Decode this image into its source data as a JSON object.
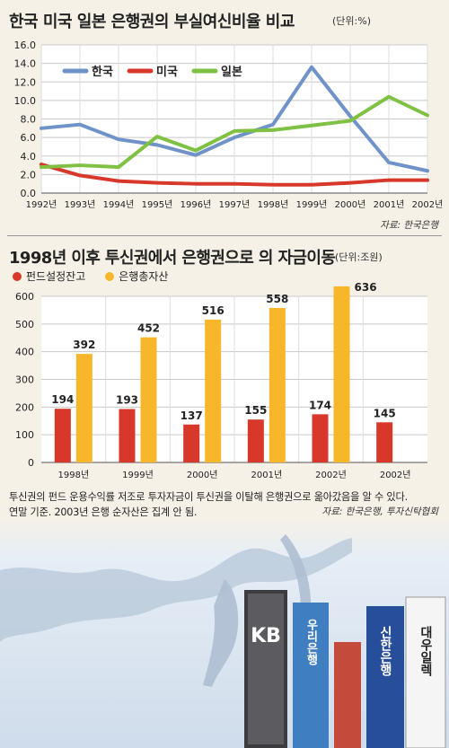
{
  "chart_data": [
    {
      "type": "line",
      "title": "한국 미국 일본 은행권의 부실여신비율 비교",
      "unit": "(단위:%)",
      "source": "자료: 한국은행",
      "x": [
        "1992년",
        "1993년",
        "1994년",
        "1995년",
        "1996년",
        "1997년",
        "1998년",
        "1999년",
        "2000년",
        "2001년",
        "2002년"
      ],
      "ylim": [
        0,
        16
      ],
      "yticks": [
        "0.0",
        "2.0",
        "4.0",
        "6.0",
        "8.0",
        "10.0",
        "12.0",
        "14.0",
        "16.0"
      ],
      "grid": true,
      "legend_position": "top-left",
      "series": [
        {
          "name": "한국",
          "color": "#6f93c8",
          "values": [
            7.0,
            7.4,
            5.8,
            5.2,
            4.1,
            6.0,
            7.4,
            13.6,
            8.3,
            3.3,
            2.4
          ]
        },
        {
          "name": "미국",
          "color": "#d8382a",
          "values": [
            3.1,
            1.9,
            1.3,
            1.1,
            1.0,
            1.0,
            0.9,
            0.9,
            1.1,
            1.4,
            1.4
          ]
        },
        {
          "name": "일본",
          "color": "#7fc142",
          "values": [
            2.8,
            3.0,
            2.8,
            6.1,
            4.6,
            6.7,
            6.8,
            7.3,
            7.8,
            10.4,
            8.4
          ]
        }
      ]
    },
    {
      "type": "bar",
      "title": "1998년 이후 투신권에서 은행권으로 의 자금이동",
      "unit": "(단위:조원)",
      "categories": [
        "1998년",
        "1999년",
        "2000년",
        "2001년",
        "2002년",
        "2002년"
      ],
      "ylim": [
        0,
        600
      ],
      "yticks": [
        "0",
        "100",
        "200",
        "300",
        "400",
        "500",
        "600"
      ],
      "grid": true,
      "legend_position": "top-left",
      "series": [
        {
          "name": "펀드설정잔고",
          "color": "#d8382a",
          "values": [
            194,
            193,
            137,
            155,
            174,
            145
          ]
        },
        {
          "name": "은행총자산",
          "color": "#f8b62a",
          "values": [
            392,
            452,
            516,
            558,
            636,
            null
          ]
        }
      ],
      "labels": {
        "fund": [
          "194",
          "193",
          "137",
          "155",
          "174",
          "145"
        ],
        "bank": [
          "392",
          "452",
          "516",
          "558",
          "636",
          ""
        ]
      }
    }
  ],
  "note": {
    "line1": "투신권의 펀드 운용수익률 저조로 투자자금이 투신권을 이탈해 은행권으로 옮아갔음을 알 수 있다.",
    "line2": "연말 기준. 2003년 은행 순자산은 집계 안 됨.",
    "source": "자료: 한국은행, 투자신탁협회"
  },
  "decor": {
    "signs": [
      "KB",
      "우리은행",
      "신한은행",
      "대우일렉"
    ]
  }
}
